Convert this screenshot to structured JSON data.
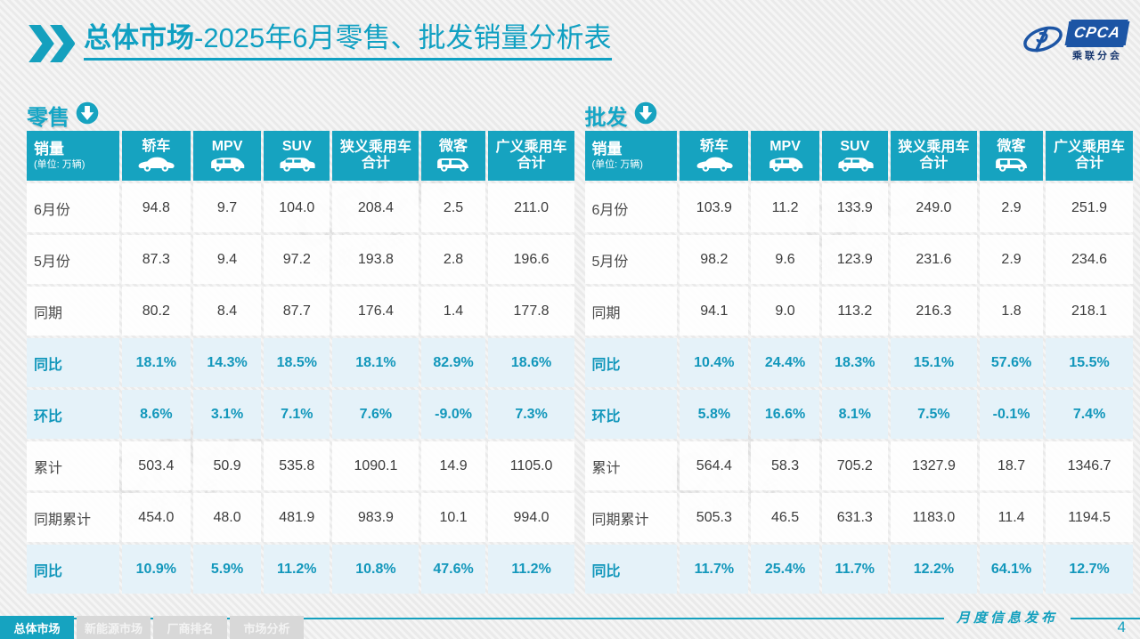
{
  "header": {
    "title_bold": "总体市场",
    "title_rest": "-2025年6月零售、批发销量分析表"
  },
  "logo": {
    "abbr": "CPCA",
    "cn": "乘联分会"
  },
  "unit_note": "(单位: 万辆)",
  "table_columns": [
    {
      "label": "销量",
      "sub": "(单位: 万辆)",
      "icon": ""
    },
    {
      "label": "轿车",
      "icon": "sedan-car-icon"
    },
    {
      "label": "MPV",
      "icon": "mpv-car-icon"
    },
    {
      "label": "SUV",
      "icon": "suv-car-icon"
    },
    {
      "label": "狭义乘用车合计",
      "icon": ""
    },
    {
      "label": "微客",
      "icon": "microvan-icon"
    },
    {
      "label": "广义乘用车合计",
      "icon": ""
    }
  ],
  "tables": [
    {
      "id": "retail",
      "section_label": "零售",
      "rows": [
        {
          "label": "6月份",
          "highlight": false,
          "values": [
            "94.8",
            "9.7",
            "104.0",
            "208.4",
            "2.5",
            "211.0"
          ]
        },
        {
          "label": "5月份",
          "highlight": false,
          "values": [
            "87.3",
            "9.4",
            "97.2",
            "193.8",
            "2.8",
            "196.6"
          ]
        },
        {
          "label": "同期",
          "highlight": false,
          "values": [
            "80.2",
            "8.4",
            "87.7",
            "176.4",
            "1.4",
            "177.8"
          ]
        },
        {
          "label": "同比",
          "highlight": true,
          "values": [
            "18.1%",
            "14.3%",
            "18.5%",
            "18.1%",
            "82.9%",
            "18.6%"
          ]
        },
        {
          "label": "环比",
          "highlight": true,
          "values": [
            "8.6%",
            "3.1%",
            "7.1%",
            "7.6%",
            "-9.0%",
            "7.3%"
          ]
        },
        {
          "label": "累计",
          "highlight": false,
          "values": [
            "503.4",
            "50.9",
            "535.8",
            "1090.1",
            "14.9",
            "1105.0"
          ]
        },
        {
          "label": "同期累计",
          "highlight": false,
          "values": [
            "454.0",
            "48.0",
            "481.9",
            "983.9",
            "10.1",
            "994.0"
          ]
        },
        {
          "label": "同比",
          "highlight": true,
          "values": [
            "10.9%",
            "5.9%",
            "11.2%",
            "10.8%",
            "47.6%",
            "11.2%"
          ]
        }
      ]
    },
    {
      "id": "wholesale",
      "section_label": "批发",
      "rows": [
        {
          "label": "6月份",
          "highlight": false,
          "values": [
            "103.9",
            "11.2",
            "133.9",
            "249.0",
            "2.9",
            "251.9"
          ]
        },
        {
          "label": "5月份",
          "highlight": false,
          "values": [
            "98.2",
            "9.6",
            "123.9",
            "231.6",
            "2.9",
            "234.6"
          ]
        },
        {
          "label": "同期",
          "highlight": false,
          "values": [
            "94.1",
            "9.0",
            "113.2",
            "216.3",
            "1.8",
            "218.1"
          ]
        },
        {
          "label": "同比",
          "highlight": true,
          "values": [
            "10.4%",
            "24.4%",
            "18.3%",
            "15.1%",
            "57.6%",
            "15.5%"
          ]
        },
        {
          "label": "环比",
          "highlight": true,
          "values": [
            "5.8%",
            "16.6%",
            "8.1%",
            "7.5%",
            "-0.1%",
            "7.4%"
          ]
        },
        {
          "label": "累计",
          "highlight": false,
          "values": [
            "564.4",
            "58.3",
            "705.2",
            "1327.9",
            "18.7",
            "1346.7"
          ]
        },
        {
          "label": "同期累计",
          "highlight": false,
          "values": [
            "505.3",
            "46.5",
            "631.3",
            "1183.0",
            "11.4",
            "1194.5"
          ]
        },
        {
          "label": "同比",
          "highlight": true,
          "values": [
            "11.7%",
            "25.4%",
            "11.7%",
            "12.2%",
            "64.1%",
            "12.7%"
          ]
        }
      ]
    }
  ],
  "footer": {
    "tabs": [
      {
        "label": "总体市场",
        "active": true
      },
      {
        "label": "新能源市场",
        "active": false
      },
      {
        "label": "厂商排名",
        "active": false
      },
      {
        "label": "市场分析",
        "active": false
      }
    ],
    "release_label": "月度信息发布",
    "page_number": "4"
  },
  "watermark": {
    "text": "CPCA",
    "subtext": "乘联分会"
  },
  "colors": {
    "teal": "#16A3C0",
    "teal_text": "#1297BB",
    "highlight_bg": "#E5F2F9",
    "logo_blue": "#1C55A5",
    "tab_inactive": "#D8D8D8"
  }
}
